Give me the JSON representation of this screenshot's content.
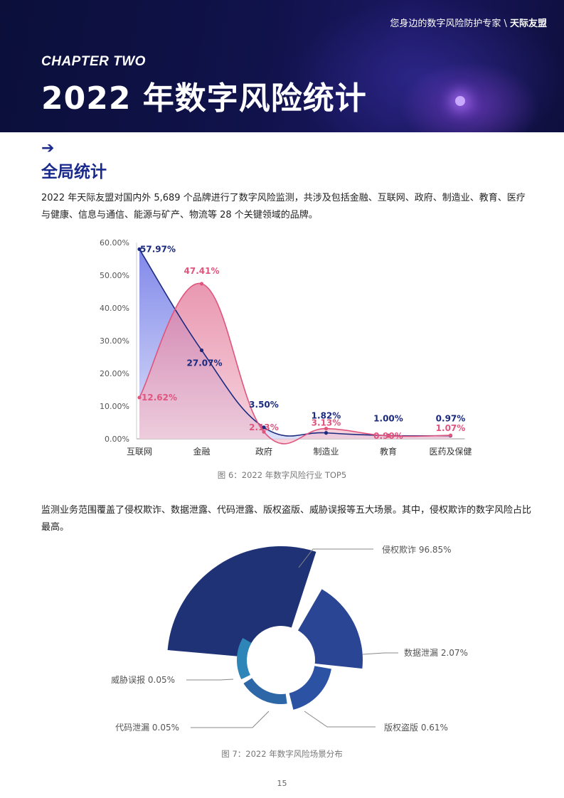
{
  "header": {
    "tagline": "您身边的数字风险防护专家",
    "tagline_sep": " \\ ",
    "brand": "天际友盟",
    "chapter": "CHAPTER TWO",
    "title": "2022 年数字风险统计",
    "arrow_icon": "arrow-right-icon"
  },
  "section": {
    "title": "全局统计",
    "para1": "2022 年天际友盟对国内外 5,689 个品牌进行了数字风险监测，共涉及包括金融、互联网、政府、制造业、教育、医疗与健康、信息与通信、能源与矿产、物流等 28 个关键领域的品牌。",
    "para2": "监测业务范围覆盖了侵权欺诈、数据泄露、代码泄露、版权盗版、威胁误报等五大场景。其中，侵权欺诈的数字风险占比最高。"
  },
  "chart_data": [
    {
      "type": "area",
      "title": "",
      "caption": "图 6：2022 年数字风险行业 TOP5",
      "categories": [
        "互联网",
        "金融",
        "政府",
        "制造业",
        "教育",
        "医药及保健"
      ],
      "ylim": [
        0,
        60
      ],
      "yticks": [
        "0.00%",
        "10.00%",
        "20.00%",
        "30.00%",
        "40.00%",
        "50.00%",
        "60.00%"
      ],
      "series": [
        {
          "values": [
            57.97,
            27.07,
            3.5,
            1.82,
            1.0,
            0.97
          ],
          "labels": [
            "57.97%",
            "27.07%",
            "3.50%",
            "1.82%",
            "1.00%",
            "0.97%"
          ],
          "color": "#1b2a7e",
          "fill": "#7f88ea"
        },
        {
          "values": [
            12.62,
            47.41,
            2.13,
            3.13,
            0.9,
            1.07
          ],
          "labels": [
            "12.62%",
            "47.41%",
            "2.13%",
            "3.13%",
            "0.90%",
            "1.07%"
          ],
          "color": "#e0557e",
          "fill": "#e88aa6"
        }
      ],
      "grid": false
    },
    {
      "type": "pie",
      "title": "",
      "caption": "图 7：2022 年数字风险场景分布",
      "slices": [
        {
          "label": "侵权欺诈 96.85%",
          "value": 96.85,
          "color": "#1e3275"
        },
        {
          "label": "数据泄漏 2.07%",
          "value": 2.07,
          "color": "#2a4594"
        },
        {
          "label": "版权盗版 0.61%",
          "value": 0.61,
          "color": "#2b52a3"
        },
        {
          "label": "代码泄漏 0.05%",
          "value": 0.05,
          "color": "#2d67a8"
        },
        {
          "label": "威胁误报 0.05%",
          "value": 0.05,
          "color": "#2e86b8"
        }
      ]
    }
  ],
  "page_number": "15"
}
